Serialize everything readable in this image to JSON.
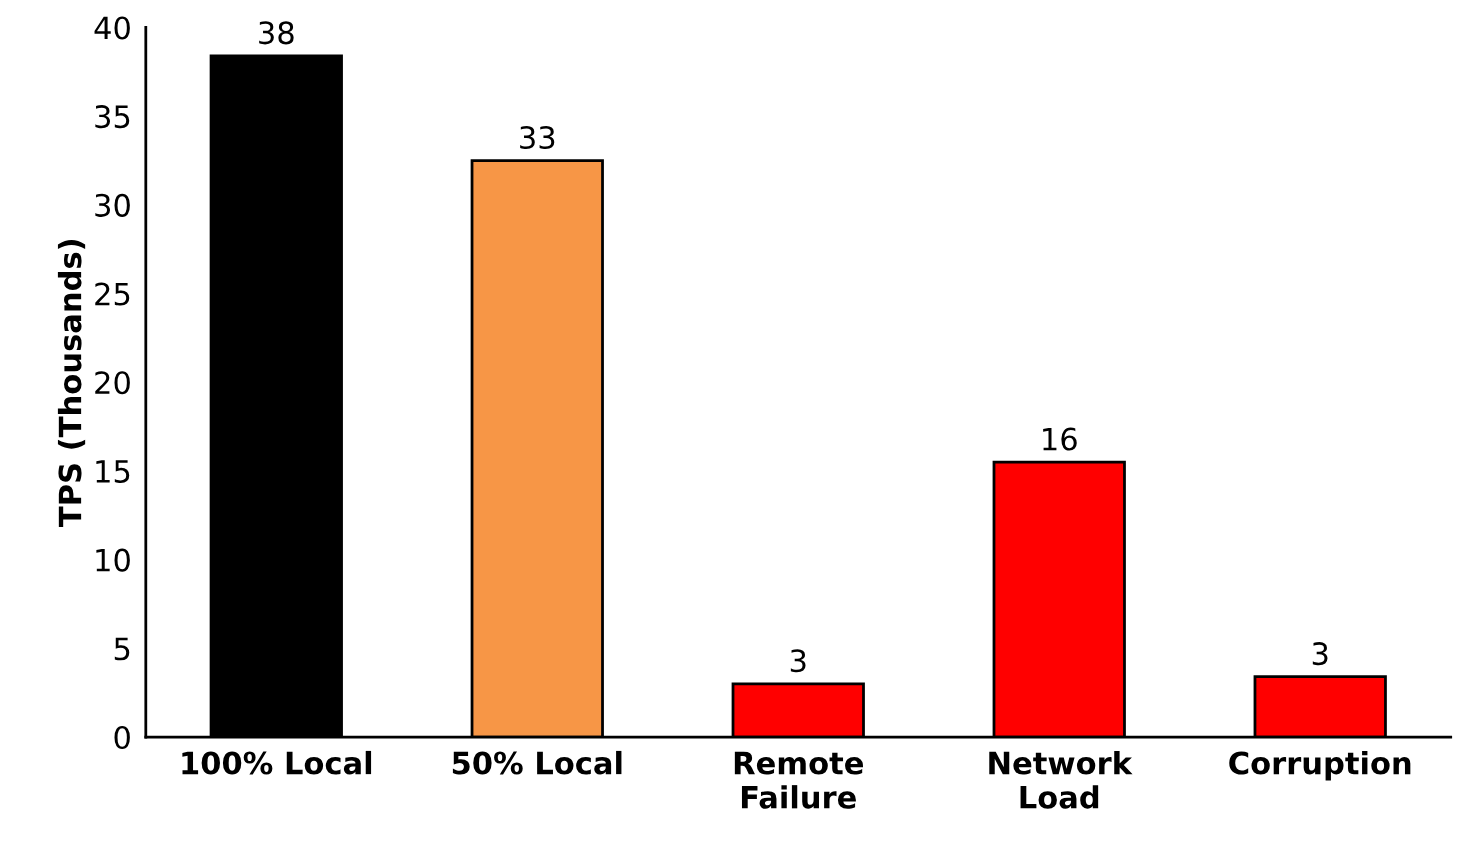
{
  "chart_data": {
    "type": "bar",
    "ylabel": "TPS (Thousands)",
    "categories": [
      "100% Local",
      "50% Local",
      "Remote\nFailure",
      "Network\nLoad",
      "Corruption"
    ],
    "values": [
      38.4,
      32.5,
      3.0,
      15.5,
      3.4
    ],
    "value_labels": [
      "38",
      "33",
      "3",
      "16",
      "3"
    ],
    "colors": [
      "#000000",
      "#f79646",
      "#ff0000",
      "#ff0000",
      "#ff0000"
    ],
    "ylim": [
      0,
      40
    ],
    "yticks": [
      0,
      5,
      10,
      15,
      20,
      25,
      30,
      35,
      40
    ],
    "grid": false
  }
}
